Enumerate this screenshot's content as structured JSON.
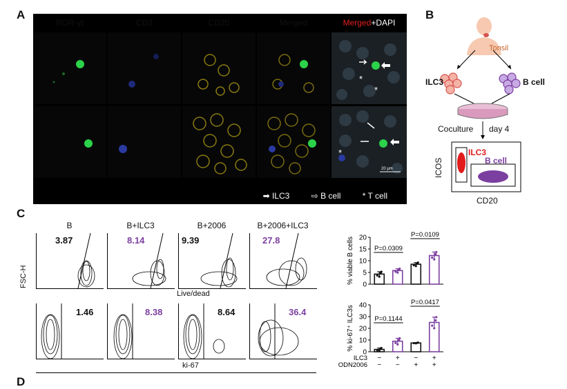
{
  "panel_labels": {
    "a": "A",
    "b": "B",
    "c": "C",
    "d": "D"
  },
  "panelA": {
    "headers": [
      {
        "text": "ROR-γt",
        "color": "#3fbf3f"
      },
      {
        "text": "CD3",
        "color": "#4d5fd8"
      },
      {
        "text": "CD20",
        "color": "#e6c700"
      },
      {
        "text": "Merged",
        "color": "#e02020"
      }
    ],
    "last_header_red": "Merged",
    "last_header_white": "+DAPI",
    "scale_bar": "20 μm",
    "legend": {
      "ilc3": "ILC3",
      "bcell": "B cell",
      "tcell": "T cell"
    }
  },
  "panelB": {
    "tonsil": "Tonsil",
    "ilc3": "ILC3",
    "bcell": "B cell",
    "coculture": "Coculture",
    "day": "day 4",
    "plot_ilc3": "ILC3",
    "plot_bcell": "B cell",
    "ylabel": "ICOS",
    "xlabel": "CD20"
  },
  "panelC": {
    "columns": [
      "B",
      "B+ILC3",
      "B+2006",
      "B+2006+ILC3"
    ],
    "row1_values": [
      "3.87",
      "8.14",
      "9.39",
      "27.8"
    ],
    "row2_values": [
      "1.46",
      "8.38",
      "8.64",
      "36.4"
    ],
    "value_colors": [
      "#111111",
      "#7b3fa0",
      "#111111",
      "#7b3fa0"
    ],
    "row1_xlabel": "Live/dead",
    "row2_xlabel": "ki-67",
    "ylabel": "FSC-H"
  },
  "chart_data": [
    {
      "type": "bar",
      "ylabel": "% viable B cells",
      "ylim": [
        0,
        20
      ],
      "yticks": [
        "0",
        "5",
        "10",
        "15",
        "20"
      ],
      "categories": [
        "B",
        "B+ILC3",
        "B+2006",
        "B+2006+ILC3"
      ],
      "values": [
        4.3,
        5.8,
        8.5,
        12.2
      ],
      "errors": [
        1.0,
        0.8,
        0.7,
        1.5
      ],
      "bar_colors": [
        "#111111",
        "#7b3fa0",
        "#111111",
        "#7b3fa0"
      ],
      "annotations": [
        "P=0.0309",
        "P=0.0109"
      ]
    },
    {
      "type": "bar",
      "ylabel": "% ki-67⁺ ILC3s",
      "ylim": [
        0,
        40
      ],
      "yticks": [
        "0",
        "10",
        "20",
        "30",
        "40"
      ],
      "categories": [
        "B",
        "B+ILC3",
        "B+2006",
        "B+2006+ILC3"
      ],
      "values": [
        2.0,
        9.0,
        7.5,
        25.0
      ],
      "errors": [
        1.2,
        2.5,
        0.3,
        4.5
      ],
      "bar_colors": [
        "#111111",
        "#7b3fa0",
        "#111111",
        "#7b3fa0"
      ],
      "annotations": [
        "P=0.1144",
        "P=0.0417"
      ],
      "conditions": {
        "ILC3": [
          "−",
          "+",
          "−",
          "+"
        ],
        "ODN2006": [
          "−",
          "−",
          "+",
          "+"
        ]
      }
    }
  ]
}
